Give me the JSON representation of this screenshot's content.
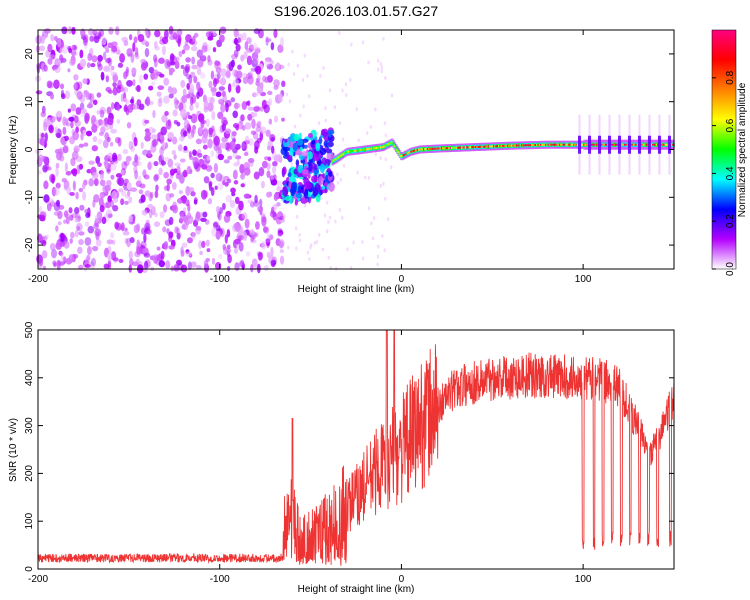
{
  "figure": {
    "title": "S196.2026.103.01.57.G27"
  },
  "chart_data": [
    {
      "type": "heatmap",
      "name": "spectrogram",
      "xlabel": "Height of straight line (km)",
      "ylabel": "Frequency (Hz)",
      "xlim": [
        -200,
        150
      ],
      "ylim": [
        -25,
        25
      ],
      "xticks": [
        -200,
        -100,
        0,
        100
      ],
      "yticks": [
        -20,
        -10,
        0,
        10,
        20
      ],
      "colorbar": {
        "label": "Normalized spectral amplitude",
        "range": [
          0,
          1
        ],
        "ticks": [
          0.0,
          0.2,
          0.4,
          0.6,
          0.8
        ],
        "tick_labels": [
          "0.0",
          "0.2",
          "0.4",
          "0.6",
          "0.8"
        ],
        "colormap": [
          "#ffffff",
          "#b400ff",
          "#0000ff",
          "#00ffff",
          "#00ff00",
          "#ffff00",
          "#ff8000",
          "#ff0000",
          "#ff0080"
        ]
      },
      "regions": [
        {
          "x_range": [
            -200,
            -65
          ],
          "description_level": "noise",
          "max_amplitude": 0.12
        },
        {
          "x_range": [
            -65,
            -38
          ],
          "center_freq": -4,
          "max_amplitude": 0.35
        },
        {
          "x_range": [
            -38,
            150
          ],
          "center_freq": 0.8,
          "max_amplitude": 1.0
        }
      ],
      "tone_track": [
        {
          "x": -65,
          "f": -4.5
        },
        {
          "x": -55,
          "f": -4
        },
        {
          "x": -45,
          "f": -3.5
        },
        {
          "x": -40,
          "f": -3
        },
        {
          "x": -35,
          "f": -1.8
        },
        {
          "x": -30,
          "f": -0.5
        },
        {
          "x": -20,
          "f": 0
        },
        {
          "x": -10,
          "f": 0.5
        },
        {
          "x": -5,
          "f": 1.5
        },
        {
          "x": 0,
          "f": -1.5
        },
        {
          "x": 5,
          "f": -0.5
        },
        {
          "x": 10,
          "f": 0
        },
        {
          "x": 20,
          "f": 0.2
        },
        {
          "x": 40,
          "f": 0.5
        },
        {
          "x": 60,
          "f": 0.8
        },
        {
          "x": 80,
          "f": 1.0
        },
        {
          "x": 100,
          "f": 1.0
        },
        {
          "x": 120,
          "f": 1.0
        },
        {
          "x": 150,
          "f": 1.0
        }
      ]
    },
    {
      "type": "line",
      "name": "snr",
      "xlabel": "Height of straight line (km)",
      "ylabel": "SNR (10 * v/v)",
      "xlim": [
        -200,
        150
      ],
      "ylim": [
        0,
        500
      ],
      "xticks": [
        -200,
        -100,
        0,
        100
      ],
      "yticks": [
        0,
        100,
        200,
        300,
        400,
        500
      ],
      "color": "#ee3333",
      "envelope": [
        {
          "x": -200,
          "y": 20
        },
        {
          "x": -150,
          "y": 20
        },
        {
          "x": -100,
          "y": 22
        },
        {
          "x": -70,
          "y": 25
        },
        {
          "x": -62,
          "y": 120
        },
        {
          "x": -55,
          "y": 60
        },
        {
          "x": -45,
          "y": 80
        },
        {
          "x": -35,
          "y": 110
        },
        {
          "x": -25,
          "y": 150
        },
        {
          "x": -15,
          "y": 200
        },
        {
          "x": -10,
          "y": 220
        },
        {
          "x": 0,
          "y": 250
        },
        {
          "x": 10,
          "y": 300
        },
        {
          "x": 20,
          "y": 340
        },
        {
          "x": 30,
          "y": 380
        },
        {
          "x": 50,
          "y": 400
        },
        {
          "x": 70,
          "y": 405
        },
        {
          "x": 95,
          "y": 400
        },
        {
          "x": 110,
          "y": 395
        },
        {
          "x": 120,
          "y": 380
        },
        {
          "x": 130,
          "y": 300
        },
        {
          "x": 137,
          "y": 240
        },
        {
          "x": 142,
          "y": 280
        },
        {
          "x": 150,
          "y": 360
        }
      ],
      "spikes": [
        {
          "x": -60,
          "y": 315
        },
        {
          "x": -8,
          "y": 500
        },
        {
          "x": -4,
          "y": 500
        }
      ],
      "dropouts": [
        100,
        106,
        111,
        116,
        121,
        126,
        131,
        136,
        141,
        148
      ]
    }
  ]
}
